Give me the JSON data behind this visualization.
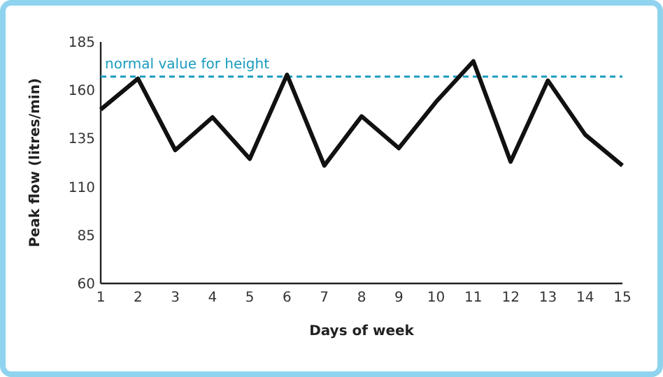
{
  "chart_data": {
    "type": "line",
    "xlabel": "Days of week",
    "ylabel": "Peak flow (litres/min)",
    "x": [
      1,
      2,
      3,
      4,
      5,
      6,
      7,
      8,
      9,
      10,
      11,
      12,
      13,
      14,
      15
    ],
    "series": [
      {
        "color": "#111111",
        "values": [
          150,
          166,
          129,
          146,
          124.5,
          168,
          121,
          146.5,
          130,
          154,
          175,
          123,
          165,
          137,
          121
        ]
      }
    ],
    "xlim": [
      1,
      15
    ],
    "xticks": [
      1,
      2,
      3,
      4,
      5,
      6,
      7,
      8,
      9,
      10,
      11,
      12,
      13,
      14,
      15
    ],
    "ylim": [
      60,
      185
    ],
    "yticks": [
      60,
      85,
      110,
      135,
      160,
      185
    ],
    "ref_lines": [
      {
        "axis": "y",
        "value": 167,
        "label": "normal value for height",
        "color": "#1a9bbf",
        "line_style": "dashed"
      }
    ],
    "grid": false,
    "marker": "none",
    "line_style": "solid"
  }
}
